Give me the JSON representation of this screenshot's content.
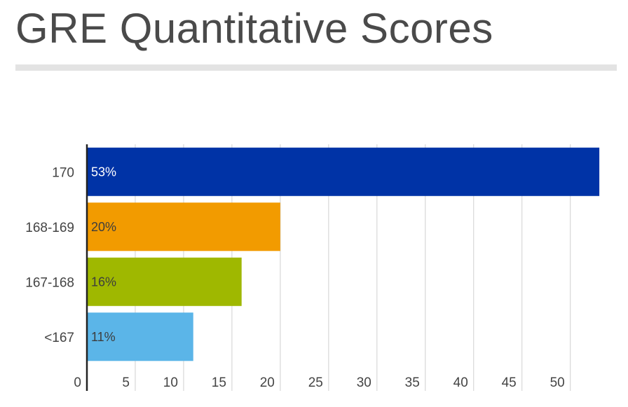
{
  "chart_data": {
    "type": "bar",
    "orientation": "horizontal",
    "title": "GRE Quantitative Scores",
    "categories": [
      "170",
      "168-169",
      "167-168",
      "<167"
    ],
    "values": [
      53,
      20,
      16,
      11
    ],
    "value_labels": [
      "53%",
      "20%",
      "16%",
      "11%"
    ],
    "colors": [
      "#0033a6",
      "#f29b00",
      "#9fb800",
      "#5bb5e8"
    ],
    "label_colors": [
      "#ffffff",
      "#3d3d3d",
      "#3d3d3d",
      "#3d3d3d"
    ],
    "xticks": [
      0,
      5,
      10,
      15,
      20,
      25,
      30,
      35,
      40,
      45,
      50
    ],
    "xlim": [
      0,
      53.5
    ],
    "xlabel": "",
    "ylabel": "",
    "grid": true,
    "legend": "none"
  }
}
